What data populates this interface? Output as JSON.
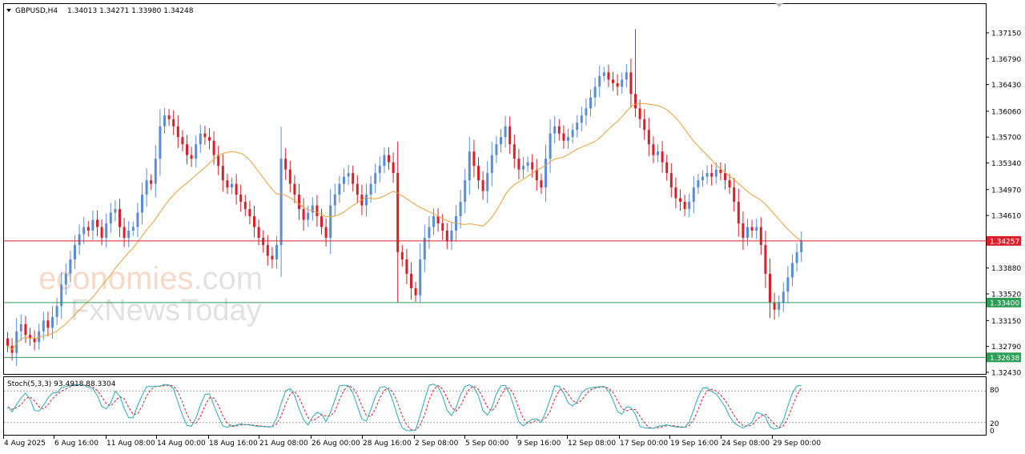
{
  "header": {
    "symbol": "GBPUSD,H4",
    "ohlc": "1.34013 1.34271 1.33980 1.34248"
  },
  "stoch": {
    "label": "Stoch(5,3,3) 93.4918 88.3304",
    "levels": [
      "80",
      "20",
      "0"
    ]
  },
  "watermark": {
    "line1_a": "economies",
    "line1_b": ".com",
    "line2": "FxNewsToday"
  },
  "colors": {
    "bull": "#5b8dd6",
    "bear": "#d9202a",
    "ma": "#e8a13a",
    "stoch_main": "#2aa8b8",
    "stoch_signal": "#d9202a",
    "price_line": "#d9202a",
    "support1": "#2e9d57",
    "support2": "#2e9d57"
  },
  "chart_data": {
    "type": "candlestick",
    "symbol": "GBPUSD",
    "timeframe": "H4",
    "ylim": [
      1.3243,
      1.3745
    ],
    "y_ticks": [
      "1.37150",
      "1.36790",
      "1.36430",
      "1.36060",
      "1.35700",
      "1.35340",
      "1.34970",
      "1.34610",
      "1.33880",
      "1.33520",
      "1.33150",
      "1.32790",
      "1.32430"
    ],
    "x_ticks": [
      "4 Aug 2025",
      "6 Aug 16:00",
      "11 Aug 08:00",
      "14 Aug 00:00",
      "18 Aug 16:00",
      "21 Aug 08:00",
      "26 Aug 00:00",
      "28 Aug 16:00",
      "2 Sep 08:00",
      "5 Sep 00:00",
      "9 Sep 16:00",
      "12 Sep 08:00",
      "17 Sep 00:00",
      "19 Sep 16:00",
      "24 Sep 08:00",
      "29 Sep 00:00"
    ],
    "price_levels": [
      {
        "name": "current",
        "value": 1.34257,
        "label": "1.34257"
      },
      {
        "name": "support-1",
        "value": 1.334,
        "label": "1.33400"
      },
      {
        "name": "support-2",
        "value": 1.32638,
        "label": "1.32638"
      }
    ],
    "close": [
      1.328,
      1.327,
      1.33,
      1.331,
      1.3295,
      1.329,
      1.3285,
      1.33,
      1.3315,
      1.3305,
      1.332,
      1.3335,
      1.3365,
      1.338,
      1.34,
      1.342,
      1.3435,
      1.3445,
      1.344,
      1.3455,
      1.3445,
      1.343,
      1.345,
      1.3465,
      1.347,
      1.3445,
      1.343,
      1.344,
      1.3445,
      1.3465,
      1.349,
      1.351,
      1.3505,
      1.354,
      1.3585,
      1.36,
      1.3595,
      1.3585,
      1.357,
      1.356,
      1.3545,
      1.354,
      1.356,
      1.3575,
      1.357,
      1.3565,
      1.3545,
      1.353,
      1.351,
      1.35,
      1.3505,
      1.349,
      1.348,
      1.347,
      1.346,
      1.3445,
      1.343,
      1.342,
      1.3405,
      1.34,
      1.342,
      1.354,
      1.3525,
      1.3505,
      1.349,
      1.347,
      1.3455,
      1.3465,
      1.3475,
      1.346,
      1.3445,
      1.343,
      1.3475,
      1.349,
      1.3505,
      1.3515,
      1.352,
      1.3505,
      1.349,
      1.3475,
      1.349,
      1.3505,
      1.352,
      1.353,
      1.3545,
      1.3535,
      1.352,
      1.341,
      1.34,
      1.338,
      1.336,
      1.335,
      1.34,
      1.343,
      1.3445,
      1.346,
      1.345,
      1.344,
      1.3425,
      1.344,
      1.346,
      1.348,
      1.351,
      1.355,
      1.353,
      1.351,
      1.3495,
      1.352,
      1.3545,
      1.356,
      1.357,
      1.3585,
      1.356,
      1.354,
      1.3525,
      1.353,
      1.3535,
      1.3525,
      1.351,
      1.35,
      1.354,
      1.3575,
      1.3585,
      1.3575,
      1.3565,
      1.357,
      1.358,
      1.359,
      1.36,
      1.361,
      1.3625,
      1.364,
      1.3655,
      1.366,
      1.365,
      1.3645,
      1.364,
      1.365,
      1.366,
      1.363,
      1.361,
      1.3595,
      1.358,
      1.356,
      1.3545,
      1.355,
      1.3535,
      1.352,
      1.35,
      1.3485,
      1.348,
      1.347,
      1.348,
      1.35,
      1.351,
      1.3515,
      1.352,
      1.3515,
      1.3525,
      1.352,
      1.351,
      1.35,
      1.348,
      1.345,
      1.343,
      1.3445,
      1.344,
      1.3445,
      1.342,
      1.338,
      1.334,
      1.333,
      1.334,
      1.3355,
      1.3375,
      1.3395,
      1.341,
      1.3425
    ]
  }
}
